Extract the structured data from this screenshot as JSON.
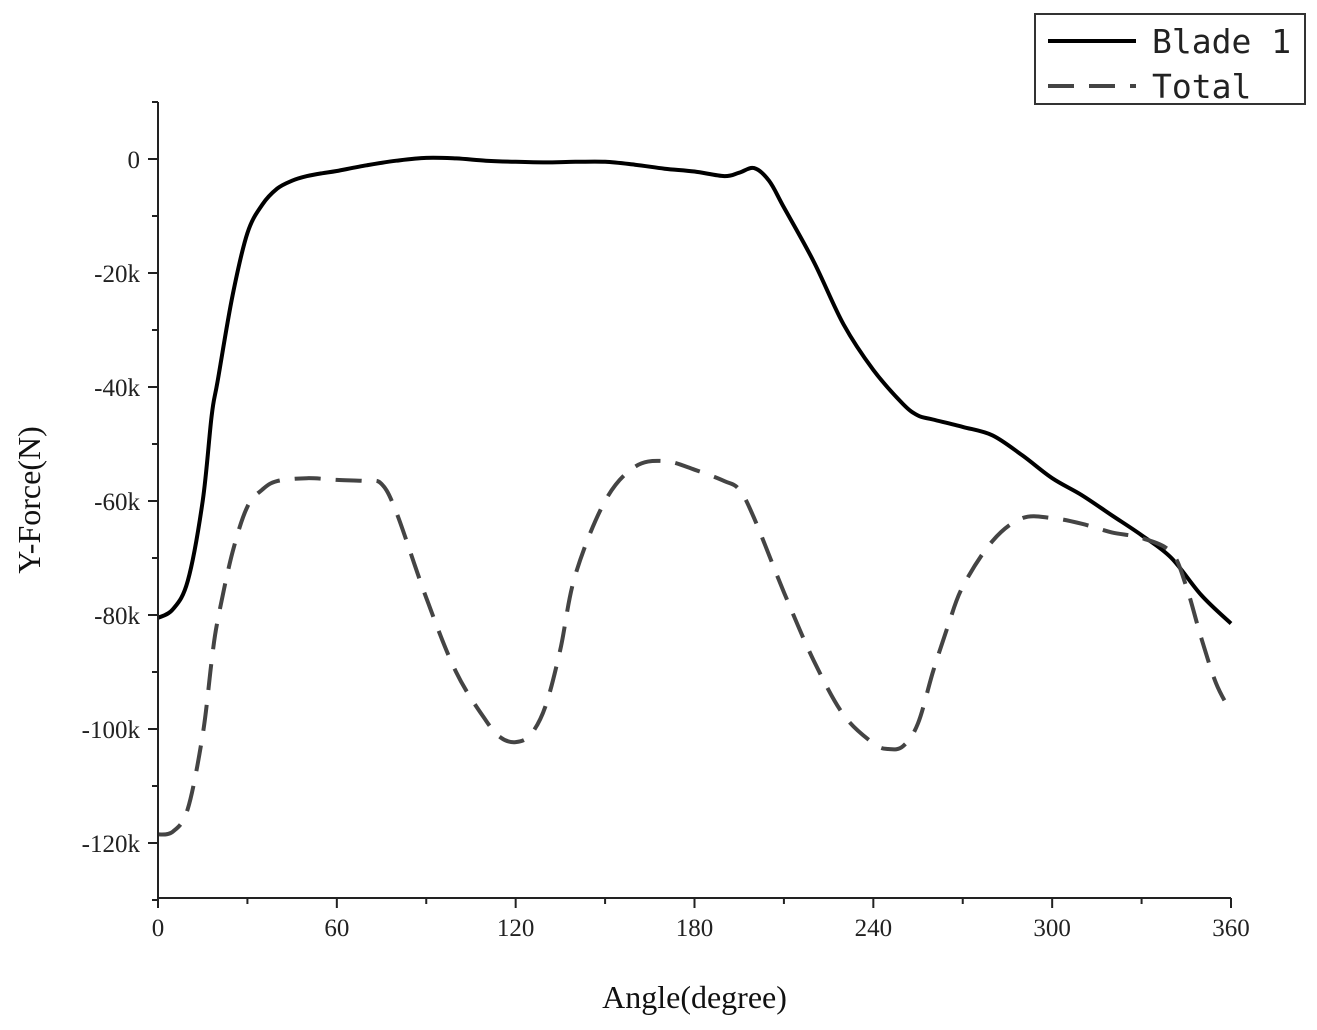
{
  "chart_data": {
    "type": "line",
    "xlabel": "Angle(degree)",
    "ylabel": "Y-Force(N)",
    "xlim": [
      0,
      360
    ],
    "ylim": [
      -130000,
      10000
    ],
    "x_ticks": [
      0,
      60,
      120,
      180,
      240,
      300,
      360
    ],
    "x_tick_labels": [
      "0",
      "60",
      "120",
      "180",
      "240",
      "300",
      "360"
    ],
    "y_ticks": [
      0,
      -20000,
      -40000,
      -60000,
      -80000,
      -100000,
      -120000
    ],
    "y_tick_labels": [
      "0",
      "-20k",
      "-40k",
      "-60k",
      "-80k",
      "-100k",
      "-120k"
    ],
    "grid": false,
    "legend_position": "top-right",
    "series": [
      {
        "name": "Blade 1",
        "style": "solid",
        "color": "#000000",
        "x": [
          0,
          5,
          10,
          15,
          18,
          20,
          25,
          30,
          35,
          40,
          45,
          50,
          55,
          60,
          70,
          80,
          90,
          100,
          110,
          120,
          130,
          140,
          150,
          160,
          170,
          180,
          190,
          195,
          200,
          205,
          210,
          220,
          230,
          240,
          250,
          255,
          260,
          270,
          280,
          290,
          300,
          310,
          320,
          330,
          340,
          350,
          360
        ],
        "y": [
          -80500,
          -79000,
          -74000,
          -60000,
          -45000,
          -39000,
          -24000,
          -13000,
          -8000,
          -5200,
          -3800,
          -3000,
          -2500,
          -2100,
          -1100,
          -300,
          200,
          100,
          -300,
          -500,
          -600,
          -500,
          -500,
          -1000,
          -1700,
          -2200,
          -3000,
          -2400,
          -1600,
          -3800,
          -8500,
          -18000,
          -29000,
          -37000,
          -43000,
          -45000,
          -45700,
          -47000,
          -48500,
          -52000,
          -56000,
          -59000,
          -62500,
          -66000,
          -70000,
          -76500,
          -81500
        ]
      },
      {
        "name": "Total",
        "style": "dashed",
        "color": "#444444",
        "x": [
          0,
          5,
          10,
          15,
          18,
          20,
          25,
          30,
          35,
          40,
          50,
          60,
          70,
          75,
          80,
          90,
          100,
          110,
          115,
          120,
          125,
          130,
          135,
          140,
          150,
          160,
          170,
          180,
          190,
          195,
          200,
          210,
          220,
          230,
          240,
          245,
          250,
          255,
          260,
          265,
          270,
          280,
          290,
          300,
          310,
          320,
          330,
          340,
          345,
          350,
          355,
          360
        ],
        "y": [
          -118500,
          -118000,
          -114000,
          -101000,
          -88000,
          -81000,
          -69000,
          -61000,
          -58000,
          -56500,
          -56000,
          -56300,
          -56500,
          -57000,
          -62000,
          -77000,
          -90000,
          -98500,
          -101500,
          -102300,
          -101000,
          -96000,
          -86000,
          -73000,
          -60000,
          -54000,
          -53000,
          -54500,
          -56500,
          -58000,
          -63000,
          -76000,
          -88000,
          -97500,
          -102500,
          -103500,
          -103000,
          -99000,
          -90000,
          -82000,
          -75000,
          -67000,
          -63000,
          -63000,
          -64000,
          -65500,
          -66500,
          -69000,
          -75000,
          -84000,
          -92000,
          -97000
        ]
      }
    ]
  }
}
